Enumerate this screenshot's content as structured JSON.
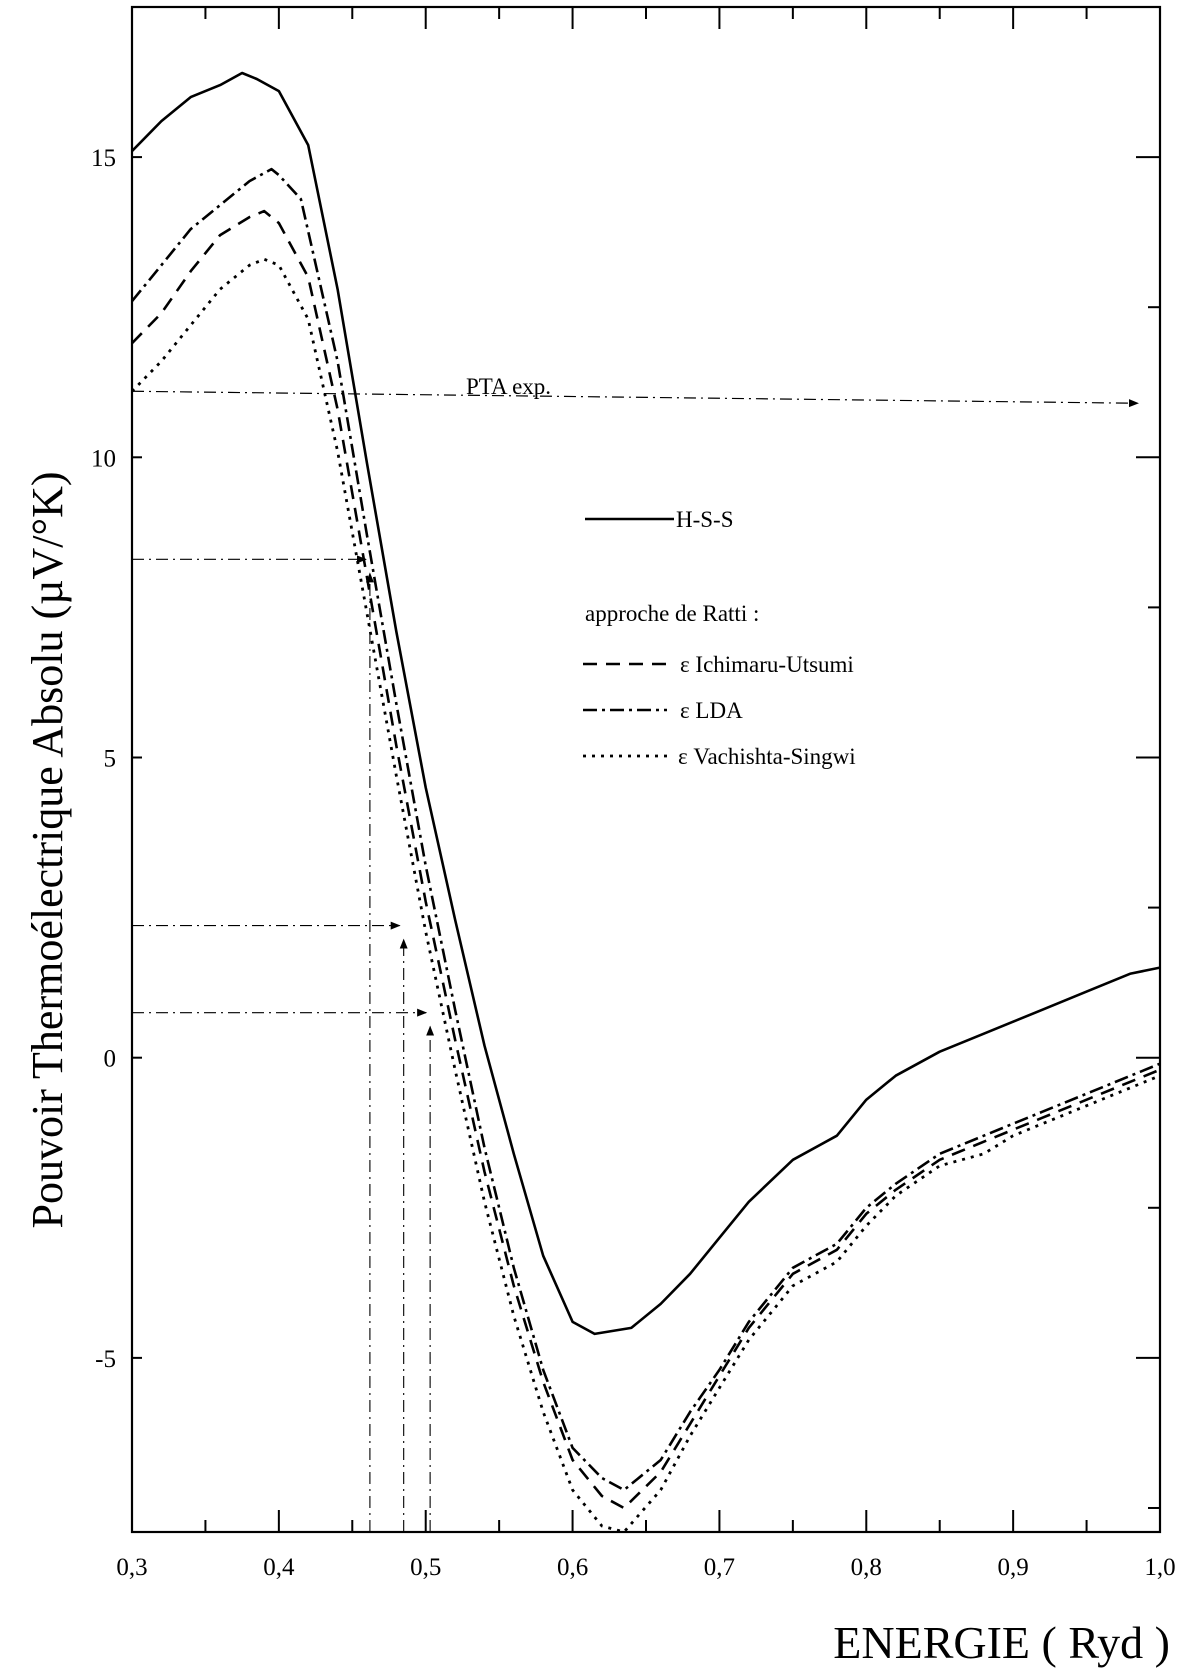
{
  "chart_data": {
    "type": "line",
    "xlabel": "ENERGIE ( Ryd )",
    "ylabel": "Pouvoir Thermoélectrique Absolu (µV/°K)",
    "xlim": [
      0.3,
      1.0
    ],
    "ylim": [
      -7.9,
      17.5
    ],
    "x_ticks": [
      {
        "value": 0.3,
        "label": "0,3"
      },
      {
        "value": 0.4,
        "label": "0,4"
      },
      {
        "value": 0.5,
        "label": "0,5"
      },
      {
        "value": 0.6,
        "label": "0,6"
      },
      {
        "value": 0.7,
        "label": "0,7"
      },
      {
        "value": 0.8,
        "label": "0,8"
      },
      {
        "value": 0.9,
        "label": "0,9"
      },
      {
        "value": 1.0,
        "label": "1,0"
      }
    ],
    "y_ticks": [
      {
        "value": 15,
        "label": "15"
      },
      {
        "value": 10,
        "label": "10"
      },
      {
        "value": 5,
        "label": "5"
      },
      {
        "value": 0,
        "label": "0"
      },
      {
        "value": -5,
        "label": "-5"
      }
    ],
    "legend_heading": "approche de Ratti :",
    "series": [
      {
        "name": "H-S-S",
        "style": "solid",
        "x": [
          0.3,
          0.32,
          0.34,
          0.36,
          0.375,
          0.385,
          0.4,
          0.42,
          0.44,
          0.46,
          0.48,
          0.5,
          0.52,
          0.54,
          0.56,
          0.58,
          0.6,
          0.615,
          0.64,
          0.66,
          0.68,
          0.7,
          0.72,
          0.75,
          0.78,
          0.8,
          0.82,
          0.85,
          0.88,
          0.9,
          0.92,
          0.95,
          0.98,
          1.0
        ],
        "y": [
          15.1,
          15.6,
          16.0,
          16.2,
          16.4,
          16.3,
          16.1,
          15.2,
          12.8,
          9.9,
          7.1,
          4.5,
          2.3,
          0.2,
          -1.6,
          -3.3,
          -4.4,
          -4.6,
          -4.5,
          -4.1,
          -3.6,
          -3.0,
          -2.4,
          -1.7,
          -1.3,
          -0.7,
          -0.3,
          0.1,
          0.4,
          0.6,
          0.8,
          1.1,
          1.4,
          1.5
        ]
      },
      {
        "name": "ε Ichimaru-Utsumi",
        "style": "dashed",
        "x": [
          0.3,
          0.32,
          0.34,
          0.36,
          0.38,
          0.39,
          0.4,
          0.42,
          0.44,
          0.46,
          0.48,
          0.5,
          0.52,
          0.54,
          0.56,
          0.58,
          0.6,
          0.62,
          0.635,
          0.66,
          0.68,
          0.7,
          0.72,
          0.75,
          0.78,
          0.8,
          0.82,
          0.85,
          0.88,
          0.9,
          0.92,
          0.95,
          0.98,
          1.0
        ],
        "y": [
          11.9,
          12.4,
          13.1,
          13.7,
          14.0,
          14.1,
          13.9,
          13.0,
          10.8,
          8.0,
          5.2,
          2.6,
          0.3,
          -1.9,
          -3.8,
          -5.4,
          -6.7,
          -7.3,
          -7.5,
          -6.9,
          -6.1,
          -5.3,
          -4.5,
          -3.6,
          -3.2,
          -2.6,
          -2.2,
          -1.7,
          -1.4,
          -1.2,
          -1.0,
          -0.7,
          -0.4,
          -0.2
        ]
      },
      {
        "name": "ε LDA",
        "style": "dashdot",
        "x": [
          0.3,
          0.32,
          0.34,
          0.36,
          0.38,
          0.395,
          0.4,
          0.415,
          0.44,
          0.46,
          0.48,
          0.5,
          0.52,
          0.54,
          0.56,
          0.58,
          0.6,
          0.62,
          0.635,
          0.66,
          0.68,
          0.7,
          0.72,
          0.75,
          0.78,
          0.8,
          0.82,
          0.85,
          0.88,
          0.9,
          0.92,
          0.95,
          0.98,
          1.0
        ],
        "y": [
          12.6,
          13.2,
          13.8,
          14.2,
          14.6,
          14.8,
          14.7,
          14.3,
          11.6,
          8.7,
          5.9,
          3.2,
          0.8,
          -1.5,
          -3.5,
          -5.2,
          -6.5,
          -7.0,
          -7.2,
          -6.7,
          -5.9,
          -5.2,
          -4.4,
          -3.5,
          -3.1,
          -2.5,
          -2.1,
          -1.6,
          -1.3,
          -1.1,
          -0.9,
          -0.6,
          -0.3,
          -0.1
        ]
      },
      {
        "name": "ε Vachishta-Singwi",
        "style": "dotted",
        "x": [
          0.3,
          0.32,
          0.34,
          0.36,
          0.38,
          0.39,
          0.4,
          0.42,
          0.44,
          0.46,
          0.48,
          0.5,
          0.52,
          0.54,
          0.56,
          0.58,
          0.6,
          0.62,
          0.635,
          0.66,
          0.68,
          0.7,
          0.72,
          0.75,
          0.78,
          0.8,
          0.82,
          0.85,
          0.88,
          0.9,
          0.92,
          0.95,
          0.98,
          1.0
        ],
        "y": [
          11.1,
          11.6,
          12.2,
          12.8,
          13.2,
          13.3,
          13.2,
          12.3,
          10.1,
          7.4,
          4.7,
          2.1,
          -0.2,
          -2.4,
          -4.3,
          -5.9,
          -7.2,
          -7.8,
          -7.9,
          -7.2,
          -6.3,
          -5.5,
          -4.7,
          -3.8,
          -3.4,
          -2.8,
          -2.3,
          -1.8,
          -1.6,
          -1.3,
          -1.1,
          -0.8,
          -0.5,
          -0.3
        ]
      }
    ],
    "annotation": {
      "label": "PTA exp.",
      "horizontal_line": {
        "y_from": 11.1,
        "y_to": 10.9,
        "x_from": 0.3,
        "x_to": 0.985
      }
    },
    "marker_lines": [
      {
        "y": 8.3,
        "x": 0.462
      },
      {
        "y": 2.2,
        "x": 0.485
      },
      {
        "y": 0.75,
        "x": 0.503
      }
    ]
  }
}
